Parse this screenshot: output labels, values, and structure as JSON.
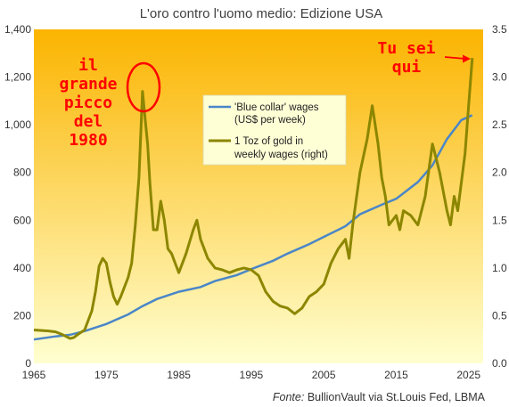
{
  "chart_data": {
    "type": "line",
    "title": "L'oro contro l'uomo medio: Edizione USA",
    "source_label": "Fonte:",
    "source_text": "BullionVault via St.Louis Fed, LBMA",
    "x_ticks": [
      "1965",
      "1975",
      "1985",
      "1995",
      "2005",
      "2015",
      "2025"
    ],
    "xlim": [
      1965,
      2027
    ],
    "left_axis": {
      "ylim": [
        0,
        1400
      ],
      "ticks": [
        "0",
        "200",
        "400",
        "600",
        "800",
        "1,000",
        "1,200",
        "1,400"
      ]
    },
    "right_axis": {
      "ylim": [
        0,
        3.5
      ],
      "ticks": [
        "0.0",
        "0.5",
        "1.0",
        "1.5",
        "2.0",
        "2.5",
        "3.0",
        "3.5"
      ]
    },
    "series": [
      {
        "name": "'Blue collar' wages (US$ per week)",
        "legend_lines": [
          "'Blue collar' wages",
          "(US$ per week)"
        ],
        "axis": "left",
        "color": "#4a86c8",
        "x": [
          1965,
          1968,
          1970,
          1972,
          1975,
          1978,
          1980,
          1982,
          1985,
          1988,
          1990,
          1993,
          1995,
          1998,
          2000,
          2003,
          2005,
          2008,
          2010,
          2013,
          2015,
          2018,
          2020,
          2022,
          2024,
          2025.5
        ],
        "y": [
          100,
          113,
          120,
          135,
          165,
          205,
          240,
          270,
          300,
          320,
          345,
          370,
          395,
          430,
          460,
          500,
          530,
          575,
          625,
          665,
          690,
          760,
          830,
          940,
          1020,
          1040
        ]
      },
      {
        "name": "1 Toz of gold in weekly wages (right)",
        "legend_lines": [
          "1 Toz of gold in",
          "weekly wages (right)"
        ],
        "axis": "right",
        "color": "#8c8600",
        "x": [
          1965,
          1967,
          1968,
          1969,
          1970,
          1970.5,
          1971,
          1972,
          1973,
          1973.5,
          1974,
          1974.5,
          1975,
          1975.5,
          1976,
          1976.5,
          1977,
          1978,
          1978.5,
          1979,
          1979.5,
          1980,
          1980.3,
          1980.7,
          1981,
          1981.5,
          1982,
          1982.5,
          1983,
          1983.5,
          1984,
          1984.5,
          1985,
          1986,
          1987,
          1987.5,
          1988,
          1989,
          1990,
          1991,
          1992,
          1993,
          1994,
          1995,
          1996,
          1997,
          1998,
          1999,
          2000,
          2001,
          2002,
          2003,
          2004,
          2005,
          2006,
          2007,
          2008,
          2008.5,
          2009,
          2010,
          2011,
          2011.7,
          2012,
          2012.5,
          2013,
          2013.5,
          2014,
          2015,
          2015.5,
          2016,
          2017,
          2018,
          2018.5,
          2019,
          2020,
          2020.5,
          2021,
          2022,
          2022.5,
          2023,
          2023.5,
          2024,
          2024.5,
          2025,
          2025.5
        ],
        "y": [
          0.35,
          0.34,
          0.33,
          0.3,
          0.26,
          0.27,
          0.3,
          0.35,
          0.55,
          0.75,
          1.02,
          1.1,
          1.05,
          0.85,
          0.7,
          0.62,
          0.7,
          0.9,
          1.05,
          1.45,
          1.95,
          2.85,
          2.6,
          2.3,
          1.9,
          1.4,
          1.4,
          1.7,
          1.5,
          1.2,
          1.15,
          1.05,
          0.95,
          1.15,
          1.4,
          1.5,
          1.3,
          1.1,
          1.0,
          0.98,
          0.95,
          0.98,
          1.0,
          0.98,
          0.92,
          0.75,
          0.65,
          0.6,
          0.58,
          0.52,
          0.58,
          0.7,
          0.75,
          0.83,
          1.05,
          1.2,
          1.3,
          1.1,
          1.45,
          2.0,
          2.35,
          2.7,
          2.55,
          2.3,
          1.95,
          1.75,
          1.45,
          1.55,
          1.4,
          1.6,
          1.55,
          1.45,
          1.6,
          1.75,
          2.3,
          2.15,
          2.0,
          1.6,
          1.45,
          1.75,
          1.6,
          1.9,
          2.2,
          2.7,
          3.2
        ]
      }
    ],
    "annotations": {
      "peak_label_lines": [
        "il",
        "grande",
        "picco",
        "del",
        "1980"
      ],
      "current_label_lines": [
        "Tu sei",
        "qui"
      ]
    },
    "colors": {
      "background_top": "#fbb400",
      "background_bottom": "#ffffd0",
      "annotation": "#ff0000",
      "legend_bg": "#ffffd6"
    },
    "grid": false,
    "legend_placement": "top-center"
  }
}
